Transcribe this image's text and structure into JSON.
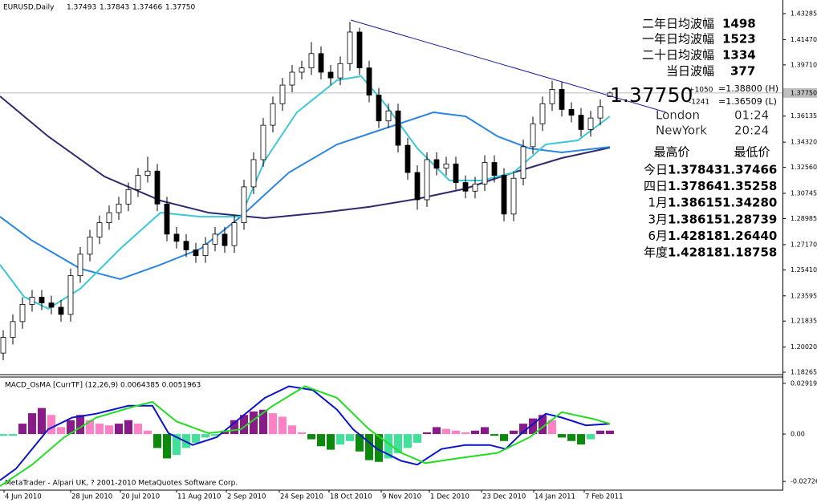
{
  "header": {
    "symbol": "EURUSD,Daily",
    "ohlc": [
      "1.37493",
      "1.37843",
      "1.37466",
      "1.37750"
    ]
  },
  "footer": "MetaTrader - Alpari UK, ? 2001-2010 MetaQuotes Software Corp.",
  "overlay": {
    "ranges": [
      {
        "label": "二年日均波幅",
        "value": "1498"
      },
      {
        "label": "一年日均波幅",
        "value": "1523"
      },
      {
        "label": "二十日均波幅",
        "value": "1334"
      },
      {
        "label": "当日波幅",
        "value": "377"
      }
    ],
    "price": "1.37750",
    "up": "+1050",
    "down": "-1241",
    "high": "=1.38800 (H)",
    "low": "=1.36509 (L)",
    "sessions": [
      {
        "city": "London",
        "time": "01:24"
      },
      {
        "city": "NewYork",
        "time": "20:24"
      }
    ],
    "table": {
      "header": [
        "最高价",
        "最低价"
      ],
      "rows": [
        [
          "今日",
          "1.37843",
          "1.37466"
        ],
        [
          "四日",
          "1.37864",
          "1.35258"
        ],
        [
          "1月",
          "1.38615",
          "1.34280"
        ],
        [
          "3月",
          "1.38615",
          "1.28739"
        ],
        [
          "6月",
          "1.42818",
          "1.26440"
        ],
        [
          "年度",
          "1.42818",
          "1.18758"
        ]
      ]
    }
  },
  "chart_data": [
    {
      "type": "candlestick",
      "xlim": [
        0,
        243.75
      ],
      "ylim": [
        1.18153,
        1.44237
      ],
      "xticks": [
        {
          "value": 1.25,
          "label": "4 Jun 2010"
        },
        {
          "value": 22,
          "label": "28 Jun 2010"
        },
        {
          "value": 37.5,
          "label": "20 Jul 2010"
        },
        {
          "value": 55,
          "label": "11 Aug 2010"
        },
        {
          "value": 70.5,
          "label": "2 Sep 2010"
        },
        {
          "value": 87,
          "label": "24 Sep 2010"
        },
        {
          "value": 102.5,
          "label": "18 Oct 2010"
        },
        {
          "value": 118.75,
          "label": "9 Nov 2010"
        },
        {
          "value": 133.75,
          "label": "1 Dec 2010"
        },
        {
          "value": 150,
          "label": "23 Dec 2010"
        },
        {
          "value": 166.25,
          "label": "14 Jan 2011"
        },
        {
          "value": 182,
          "label": "7 Feb 2011"
        }
      ],
      "yticks": [
        1.43285,
        {
          "value": 1.4147,
          "label": "1.41470"
        },
        {
          "value": 1.3971,
          "label": "1.39710"
        },
        1.36135,
        {
          "value": 1.3432,
          "label": "1.34320"
        },
        {
          "value": 1.3256,
          "label": "1.32560"
        },
        1.30745,
        1.28985,
        {
          "value": 1.2717,
          "label": "1.27170"
        },
        {
          "value": 1.2541,
          "label": "1.25410"
        },
        1.23595,
        1.21835,
        {
          "value": 1.2002,
          "label": "1.20020"
        },
        1.18265
      ],
      "price_label": {
        "value": 1.3775,
        "label": "1.37750"
      },
      "x": [
        1,
        4,
        7,
        10,
        13,
        16,
        19,
        22,
        25,
        28,
        31,
        34,
        37,
        40,
        43,
        46,
        49,
        52,
        55,
        58,
        61,
        64,
        67,
        70,
        73,
        76,
        79,
        82,
        85,
        88,
        91,
        94,
        97,
        100,
        103,
        106,
        109,
        112,
        115,
        118,
        121,
        124,
        127,
        130,
        133,
        136,
        139,
        142,
        145,
        148,
        151,
        154,
        157,
        160,
        163,
        166,
        169,
        172,
        175,
        178,
        181,
        184,
        187,
        190
      ],
      "open": [
        1.196,
        1.207,
        1.218,
        1.23,
        1.235,
        1.231,
        1.228,
        1.223,
        1.25,
        1.265,
        1.277,
        1.287,
        1.294,
        1.3,
        1.31,
        1.32,
        1.323,
        1.3,
        1.279,
        1.274,
        1.268,
        1.264,
        1.272,
        1.279,
        1.271,
        1.287,
        1.312,
        1.331,
        1.355,
        1.37,
        1.383,
        1.392,
        1.395,
        1.405,
        1.392,
        1.388,
        1.398,
        1.42,
        1.395,
        1.376,
        1.358,
        1.365,
        1.341,
        1.322,
        1.303,
        1.331,
        1.325,
        1.328,
        1.315,
        1.309,
        1.314,
        1.329,
        1.32,
        1.293,
        1.318,
        1.34,
        1.356,
        1.37,
        1.38,
        1.366,
        1.362,
        1.352,
        1.36,
        1.37493
      ],
      "high": [
        1.212,
        1.223,
        1.235,
        1.24,
        1.24,
        1.236,
        1.233,
        1.255,
        1.27,
        1.282,
        1.292,
        1.299,
        1.305,
        1.315,
        1.325,
        1.333,
        1.328,
        1.305,
        1.284,
        1.279,
        1.273,
        1.277,
        1.284,
        1.284,
        1.292,
        1.317,
        1.336,
        1.36,
        1.375,
        1.388,
        1.397,
        1.4,
        1.413,
        1.41,
        1.397,
        1.403,
        1.427,
        1.423,
        1.4,
        1.381,
        1.37,
        1.37,
        1.346,
        1.327,
        1.336,
        1.336,
        1.333,
        1.333,
        1.32,
        1.319,
        1.334,
        1.334,
        1.325,
        1.323,
        1.345,
        1.361,
        1.375,
        1.386,
        1.385,
        1.371,
        1.367,
        1.365,
        1.373,
        1.37843
      ],
      "low": [
        1.191,
        1.202,
        1.213,
        1.225,
        1.226,
        1.223,
        1.218,
        1.218,
        1.245,
        1.26,
        1.272,
        1.282,
        1.289,
        1.295,
        1.305,
        1.315,
        1.295,
        1.274,
        1.269,
        1.263,
        1.259,
        1.259,
        1.267,
        1.266,
        1.266,
        1.282,
        1.307,
        1.326,
        1.35,
        1.365,
        1.378,
        1.387,
        1.39,
        1.387,
        1.383,
        1.383,
        1.393,
        1.39,
        1.371,
        1.353,
        1.353,
        1.336,
        1.317,
        1.296,
        1.298,
        1.32,
        1.32,
        1.31,
        1.304,
        1.304,
        1.309,
        1.315,
        1.288,
        1.288,
        1.313,
        1.335,
        1.351,
        1.365,
        1.361,
        1.357,
        1.347,
        1.347,
        1.355,
        1.37466
      ],
      "close": [
        1.207,
        1.218,
        1.23,
        1.235,
        1.231,
        1.228,
        1.223,
        1.25,
        1.265,
        1.277,
        1.287,
        1.294,
        1.3,
        1.31,
        1.32,
        1.323,
        1.3,
        1.279,
        1.274,
        1.268,
        1.264,
        1.272,
        1.279,
        1.271,
        1.287,
        1.312,
        1.331,
        1.355,
        1.37,
        1.383,
        1.392,
        1.395,
        1.405,
        1.392,
        1.388,
        1.398,
        1.42,
        1.395,
        1.376,
        1.358,
        1.365,
        1.341,
        1.322,
        1.303,
        1.331,
        1.325,
        1.328,
        1.315,
        1.309,
        1.314,
        1.329,
        1.32,
        1.293,
        1.318,
        1.34,
        1.356,
        1.37,
        1.38,
        1.366,
        1.362,
        1.352,
        1.36,
        1.368,
        1.3775
      ],
      "moving_averages": [
        {
          "color": "#2f2a6e",
          "x": [
            0,
            15,
            32.5,
            50,
            65,
            82.5,
            100,
            115,
            130,
            145,
            160,
            175,
            190
          ],
          "values": [
            1.3752,
            1.3472,
            1.3192,
            1.3024,
            1.294,
            1.2901,
            1.294,
            1.298,
            1.3036,
            1.3108,
            1.322,
            1.3321,
            1.3394
          ]
        },
        {
          "color": "#2a86e0",
          "x": [
            0,
            10,
            25,
            37.5,
            50,
            62.5,
            75,
            90,
            105,
            120,
            135,
            145,
            155,
            165,
            175,
            190
          ],
          "values": [
            1.2912,
            1.2745,
            1.2549,
            1.2476,
            1.2577,
            1.2689,
            1.2912,
            1.322,
            1.3416,
            1.3528,
            1.364,
            1.3612,
            1.3472,
            1.3388,
            1.336,
            1.3399
          ]
        },
        {
          "color": "#3cc8d8",
          "x": [
            0,
            7.5,
            15,
            25,
            37.5,
            50,
            62.5,
            75,
            82.5,
            92.5,
            105,
            112.5,
            120,
            130,
            140,
            150,
            160,
            170,
            180,
            190
          ],
          "values": [
            1.2577,
            1.2353,
            1.2269,
            1.2409,
            1.2689,
            1.294,
            1.2912,
            1.2912,
            1.3304,
            1.364,
            1.3864,
            1.3892,
            1.3696,
            1.3388,
            1.3164,
            1.3164,
            1.322,
            1.3416,
            1.3444,
            1.3612
          ]
        }
      ],
      "trendline": {
        "color": "#1c1c9c",
        "x": [
          109.25,
          207.5
        ],
        "values": [
          1.4284,
          1.364
        ]
      }
    },
    {
      "type": "macd",
      "title": "MACD_OsMA [CurrTF] (12,26,9) 0.0064385 0.0051963",
      "xlim": [
        0,
        243.75
      ],
      "ylim": [
        -0.0318,
        0.0328
      ],
      "yticks": [
        0.029193,
        {
          "value": 0,
          "label": "0.00"
        },
        -0.027263
      ],
      "bar_colors": [
        "#8a1a8a",
        "#ff80c4",
        "#0b8a0b",
        "#40e29a"
      ],
      "x": [
        1,
        4,
        7,
        10,
        13,
        16,
        19,
        22,
        25,
        28,
        31,
        34,
        37,
        40,
        43,
        46,
        49,
        52,
        55,
        58,
        61,
        64,
        67,
        70,
        73,
        76,
        79,
        82,
        85,
        88,
        91,
        94,
        97,
        100,
        103,
        106,
        109,
        112,
        115,
        118,
        121,
        124,
        127,
        130,
        133,
        136,
        139,
        142,
        145,
        148,
        151,
        154,
        157,
        160,
        163,
        166,
        169,
        172,
        175,
        178,
        181,
        184,
        187,
        190
      ],
      "values": [
        -0.001,
        -0.001,
        0.006,
        0.012,
        0.015,
        0.011,
        0.004,
        0.008,
        0.011,
        0.008,
        0.006,
        0.005,
        0.006,
        0.008,
        0.006,
        0.002,
        -0.008,
        -0.014,
        -0.012,
        -0.008,
        -0.005,
        -0.002,
        -0.001,
        0.002,
        0.008,
        0.011,
        0.013,
        0.014,
        0.012,
        0.01,
        0.005,
        0.001,
        -0.003,
        -0.007,
        -0.009,
        -0.006,
        -0.004,
        -0.01,
        -0.015,
        -0.016,
        -0.014,
        -0.011,
        -0.008,
        -0.005,
        0.001,
        0.004,
        0.003,
        0.002,
        0.001,
        0.002,
        0.004,
        -0.001,
        -0.004,
        0.002,
        0.006,
        0.009,
        0.011,
        0.008,
        -0.002,
        -0.004,
        -0.006,
        -0.003,
        0.002,
        0.002
      ],
      "lines": [
        {
          "color": "#0a14c8",
          "x": [
            0,
            5,
            10,
            15,
            22.5,
            30,
            40,
            47.5,
            52.5,
            60,
            67.5,
            75,
            82.5,
            90,
            97.5,
            105,
            110,
            117.5,
            125,
            130,
            137.5,
            145,
            152.5,
            157.5,
            162.5,
            170,
            175,
            182.5,
            190
          ],
          "values": [
            -0.0266,
            -0.0199,
            -0.0086,
            0.0027,
            0.0095,
            0.0117,
            0.0163,
            0.0163,
            0.0005,
            -0.0063,
            -0.0018,
            0.0095,
            0.0208,
            0.0275,
            0.0253,
            0.014,
            0.0027,
            -0.0086,
            -0.0154,
            -0.0176,
            -0.0086,
            -0.0063,
            -0.0063,
            -0.0086,
            0.0005,
            0.0117,
            0.0095,
            0.005,
            0.0059
          ]
        },
        {
          "color": "#22dd22",
          "x": [
            0,
            10,
            20,
            30,
            42.5,
            47.5,
            55,
            65,
            75,
            85,
            95,
            105,
            115,
            125,
            132.5,
            142.5,
            155,
            165,
            175,
            185,
            190
          ],
          "values": [
            -0.03,
            -0.0176,
            -0.0018,
            0.0095,
            0.0163,
            0.0185,
            0.0072,
            0.0005,
            0.0027,
            0.0163,
            0.0275,
            0.0208,
            0.0027,
            -0.0108,
            -0.0167,
            -0.014,
            -0.0108,
            -0.0018,
            0.0126,
            0.0086,
            0.0059
          ]
        }
      ]
    }
  ]
}
